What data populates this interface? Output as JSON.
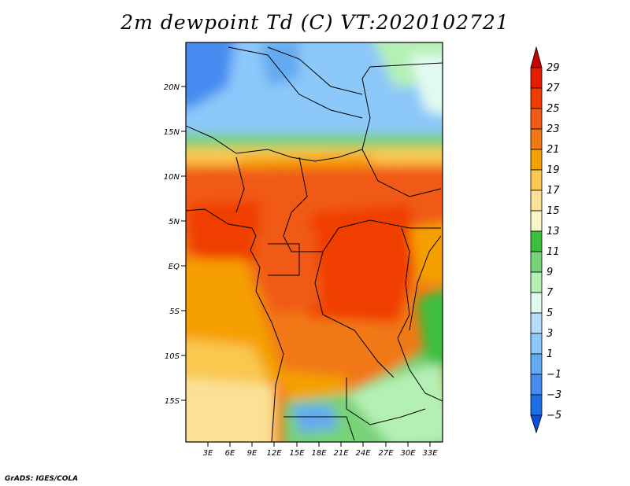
{
  "title": "2m dewpoint Td (C) VT:2020102721",
  "credit": "GrADS: IGES/COLA",
  "map": {
    "lat_labels": [
      "20N",
      "15N",
      "10N",
      "5N",
      "EQ",
      "5S",
      "10S",
      "15S"
    ],
    "lon_labels": [
      "3E",
      "6E",
      "9E",
      "12E",
      "15E",
      "18E",
      "21E",
      "24E",
      "27E",
      "30E",
      "33E"
    ]
  },
  "colorbar": {
    "labels": [
      "29",
      "27",
      "25",
      "23",
      "21",
      "19",
      "17",
      "15",
      "13",
      "11",
      "9",
      "7",
      "5",
      "3",
      "1",
      "−1",
      "−3",
      "−5"
    ],
    "colors": [
      "#c80000",
      "#e61e00",
      "#f03c00",
      "#f05a14",
      "#f07814",
      "#f5a000",
      "#fac850",
      "#fae196",
      "#faf5c8",
      "#3cbe3c",
      "#78d278",
      "#b4f0b4",
      "#e1faf0",
      "#b4dcfa",
      "#8cc8fa",
      "#64aaf0",
      "#468cf0",
      "#1e6ee6",
      "#0a50dc"
    ]
  }
}
